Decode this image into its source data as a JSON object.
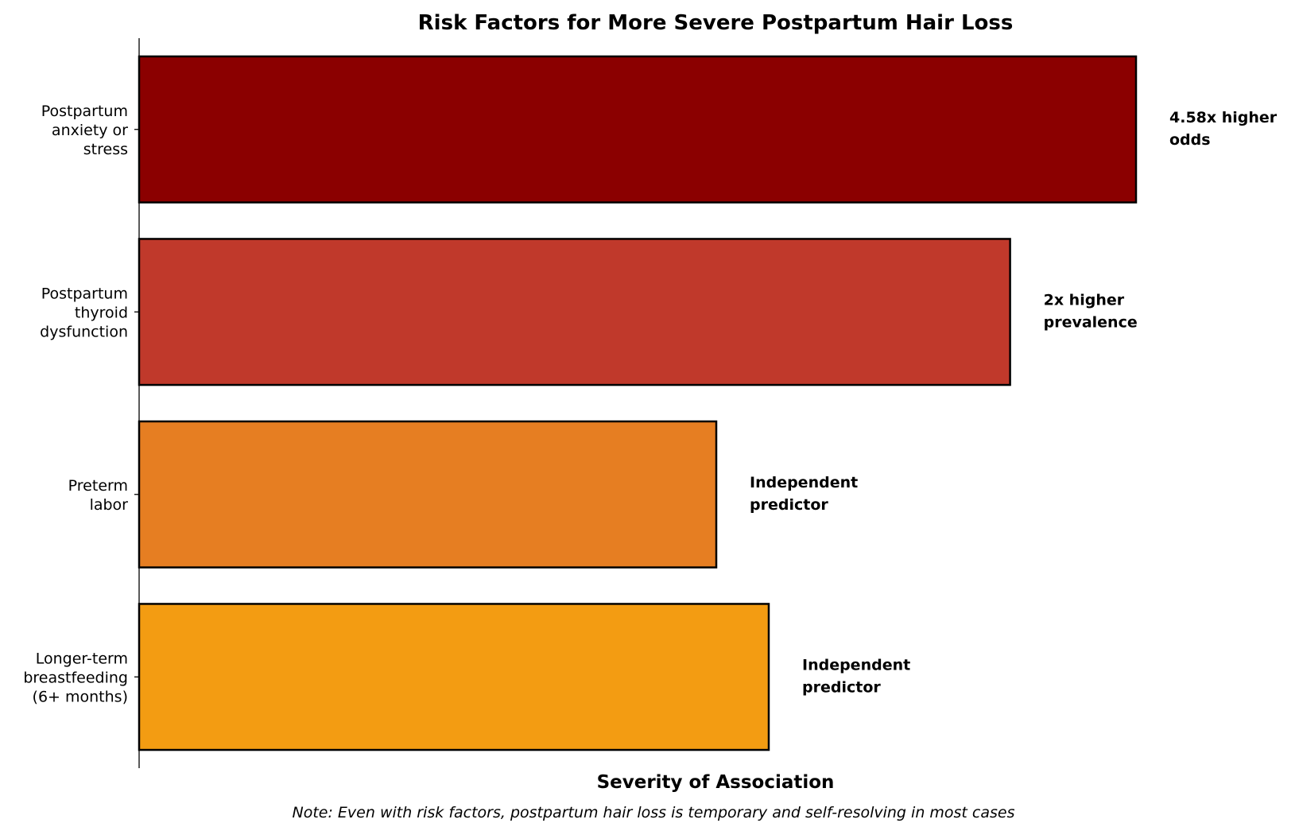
{
  "chart_data": {
    "type": "bar",
    "orientation": "horizontal",
    "title": "Risk Factors for More Severe Postpartum Hair Loss",
    "xlabel": "Severity of Association",
    "ylabel": "",
    "note": "Note: Even with risk factors, postpartum hair loss is temporary and self-resolving in most cases",
    "xlim": [
      0,
      10
    ],
    "categories": [
      [
        "Postpartum",
        "anxiety or",
        "stress"
      ],
      [
        "Postpartum",
        "thyroid",
        "dysfunction"
      ],
      [
        "Preterm",
        "labor"
      ],
      [
        "Longer-term",
        "breastfeeding",
        "(6+ months)"
      ]
    ],
    "values": [
      9.5,
      8.3,
      5.5,
      6.0
    ],
    "data_labels": [
      [
        "4.58x higher",
        "odds"
      ],
      [
        "2x higher",
        "prevalence"
      ],
      [
        "Independent",
        "predictor"
      ],
      [
        "Independent",
        "predictor"
      ]
    ],
    "colors": [
      "#8b0000",
      "#c0392b",
      "#e67e22",
      "#f39c12"
    ],
    "x_ticks_visible": false,
    "grid": false
  }
}
